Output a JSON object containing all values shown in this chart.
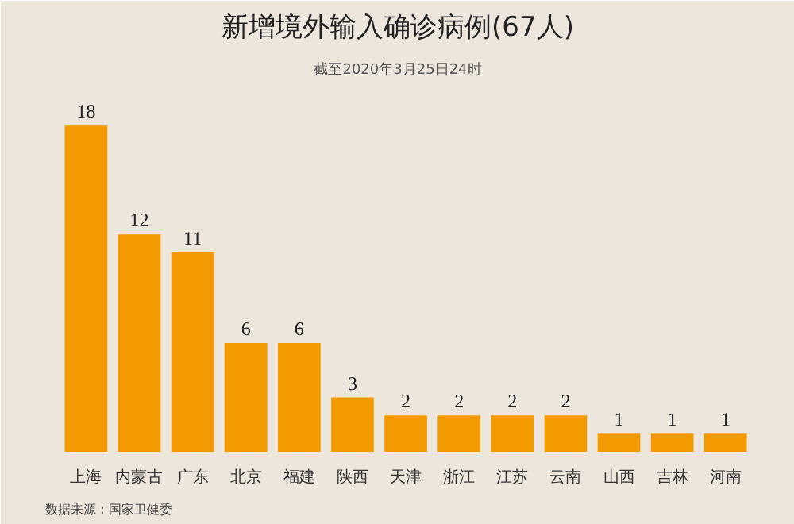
{
  "chart_data": {
    "type": "bar",
    "title": "新增境外输入确诊病例(67人)",
    "subtitle": "截至2020年3月25日24时",
    "categories": [
      "上海",
      "内蒙古",
      "广东",
      "北京",
      "福建",
      "陕西",
      "天津",
      "浙江",
      "江苏",
      "云南",
      "山西",
      "吉林",
      "河南"
    ],
    "values": [
      18,
      12,
      11,
      6,
      6,
      3,
      2,
      2,
      2,
      2,
      1,
      1,
      1
    ],
    "color": "#f39a00",
    "data_labels": true,
    "annotations": [
      "数据来源：国家卫健委"
    ]
  }
}
